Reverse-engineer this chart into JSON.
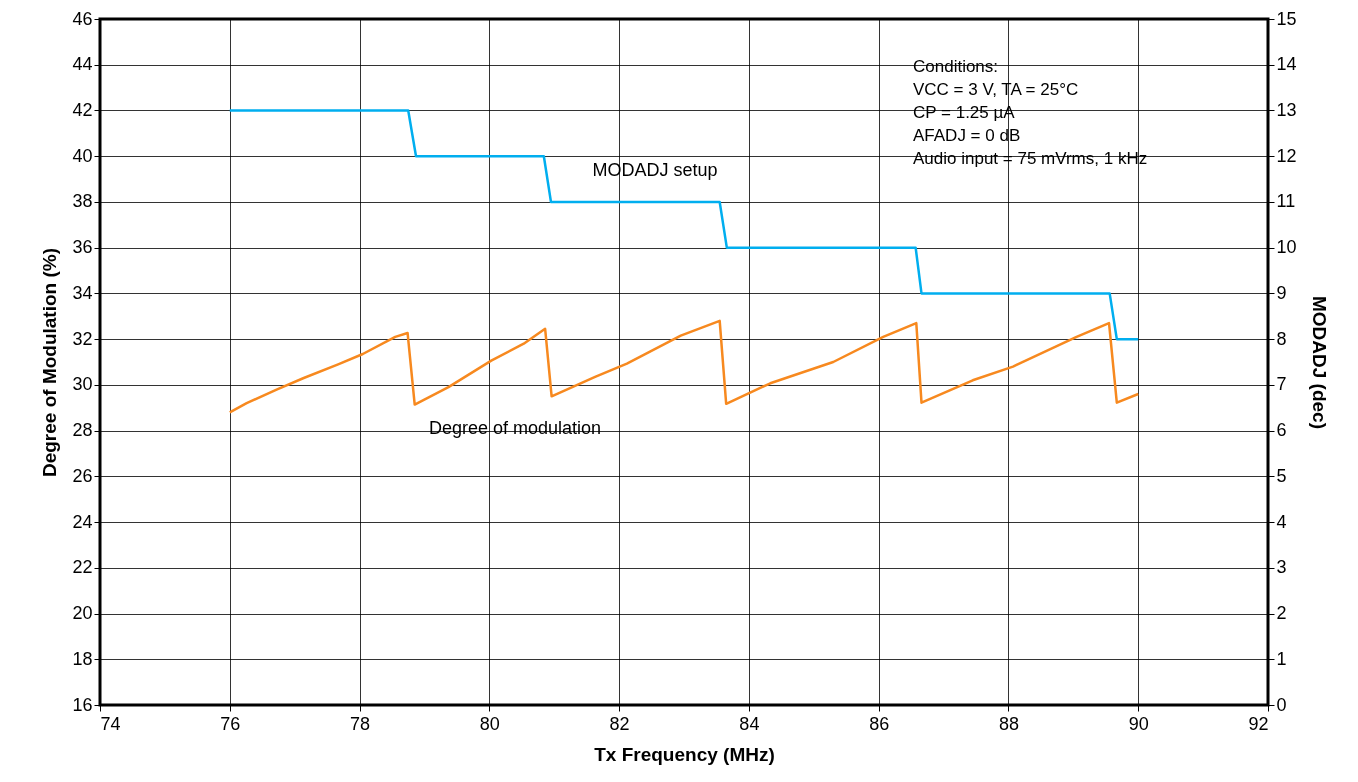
{
  "chart_data": {
    "type": "line",
    "xlabel": "Tx Frequency (MHz)",
    "ylabel": "Degree of Modulation (%)",
    "y2label": "MODADJ (dec)",
    "xlim": [
      74,
      92
    ],
    "xticks": [
      74,
      76,
      78,
      80,
      82,
      84,
      86,
      88,
      90,
      92
    ],
    "ylim": [
      16,
      46
    ],
    "yticks": [
      16,
      18,
      20,
      22,
      24,
      26,
      28,
      30,
      32,
      34,
      36,
      38,
      40,
      42,
      44,
      46
    ],
    "y2lim": [
      0,
      15
    ],
    "y2ticks": [
      0,
      1,
      2,
      3,
      4,
      5,
      6,
      7,
      8,
      9,
      10,
      11,
      12,
      13,
      14,
      15
    ],
    "grid": true,
    "marker": "none",
    "line_style": "solid",
    "series": [
      {
        "name": "Degree of modulation",
        "color": "#f7891f",
        "x": [
          76,
          76.26,
          76.73,
          77.14,
          77.67,
          78.05,
          78.55,
          78.74,
          78.85,
          79.37,
          80.03,
          80.53,
          80.86,
          80.96,
          81.63,
          82.12,
          82.95,
          83.55,
          83.65,
          84.33,
          85.3,
          86.07,
          86.58,
          86.66,
          87.45,
          88.07,
          89.05,
          89.55,
          89.67,
          90
        ],
        "values": [
          28.8,
          29.2,
          29.8,
          30.3,
          30.9,
          31.35,
          32.1,
          32.27,
          29.14,
          29.9,
          31.06,
          31.8,
          32.45,
          29.5,
          30.35,
          30.93,
          32.15,
          32.8,
          29.17,
          30.07,
          31.0,
          32.1,
          32.7,
          29.22,
          30.2,
          30.8,
          32.1,
          32.7,
          29.22,
          29.6
        ]
      },
      {
        "name": "MODADJ setup",
        "color": "#00aeef",
        "axis": "y2",
        "x": [
          76,
          78.75,
          78.87,
          80.84,
          80.95,
          83.55,
          83.66,
          86.57,
          86.66,
          89.56,
          89.67,
          90
        ],
        "values": [
          13,
          13,
          12,
          12,
          11,
          11,
          10,
          10,
          9,
          9,
          8,
          8
        ]
      }
    ],
    "annotations": [
      "Conditions:",
      "VCC = 3 V, TA = 25°C",
      "CP = 1.25 µA",
      "AFADJ = 0 dB",
      "Audio input = 75 mVrms, 1 kHz"
    ]
  }
}
